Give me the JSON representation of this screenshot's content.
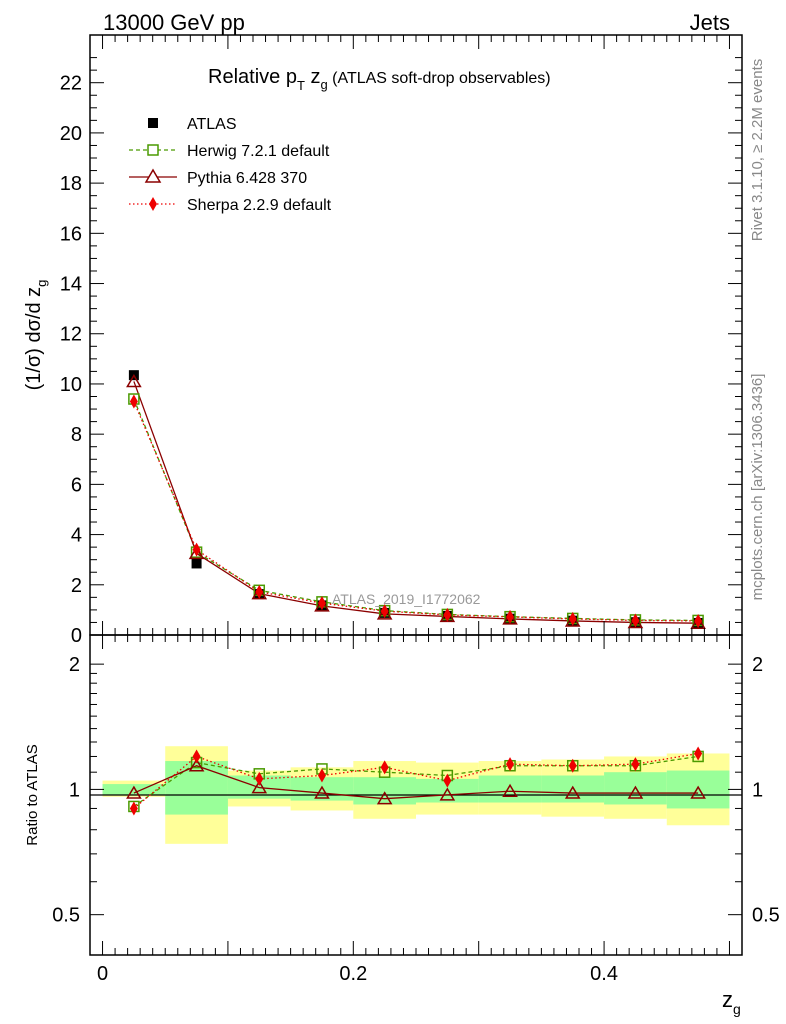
{
  "header": {
    "left": "13000 GeV pp",
    "right": "Jets"
  },
  "title": {
    "main": "Relative p",
    "sub_t": "T",
    "mid": " z",
    "sub_g": "g",
    "suffix": " (ATLAS soft-drop observables)"
  },
  "side_labels": {
    "rivet": "Rivet 3.1.10, ≥ 2.2M events",
    "mcplots": "mcplots.cern.ch [arXiv:1306.3436]"
  },
  "watermark": "ATLAS_2019_I1772062",
  "axes": {
    "ylabel_main": "(1/σ) dσ/d z",
    "ylabel_main_sub": "g",
    "ylabel_ratio": "Ratio to ATLAS",
    "xlabel": "z",
    "xlabel_sub": "g",
    "main_yticks": [
      "0",
      "2",
      "4",
      "6",
      "8",
      "10",
      "12",
      "14",
      "16",
      "18",
      "20",
      "22"
    ],
    "ratio_yticks": [
      "0.5",
      "1",
      "2"
    ],
    "xticks": [
      "0",
      "0.2",
      "0.4"
    ]
  },
  "legend": [
    {
      "name": "ATLAS",
      "color": "#000000",
      "marker": "filled-square"
    },
    {
      "name": "Herwig 7.2.1 default",
      "color": "#4a9a00",
      "marker": "open-square"
    },
    {
      "name": "Pythia 6.428 370",
      "color": "#8b0000",
      "marker": "open-triangle"
    },
    {
      "name": "Sherpa 2.2.9 default",
      "color": "#ee0000",
      "marker": "filled-diamond"
    }
  ],
  "chart_data": [
    {
      "type": "scatter",
      "panel": "main",
      "xlabel": "z_g",
      "ylabel": "(1/σ) dσ/d z_g",
      "xlim": [
        -0.01,
        0.51
      ],
      "ylim": [
        0,
        23.9
      ],
      "x": [
        0.025,
        0.075,
        0.125,
        0.175,
        0.225,
        0.275,
        0.325,
        0.375,
        0.425,
        0.475
      ],
      "series": [
        {
          "name": "ATLAS",
          "values": [
            10.35,
            2.85,
            1.63,
            1.18,
            0.88,
            0.76,
            0.65,
            0.57,
            0.51,
            0.48
          ]
        },
        {
          "name": "Herwig 7.2.1 default",
          "values": [
            9.4,
            3.3,
            1.78,
            1.32,
            0.97,
            0.82,
            0.73,
            0.66,
            0.6,
            0.58
          ]
        },
        {
          "name": "Pythia 6.428 370",
          "values": [
            10.1,
            3.25,
            1.65,
            1.16,
            0.84,
            0.74,
            0.64,
            0.56,
            0.5,
            0.47
          ]
        },
        {
          "name": "Sherpa 2.2.9 default",
          "values": [
            9.3,
            3.4,
            1.72,
            1.27,
            0.95,
            0.8,
            0.72,
            0.64,
            0.58,
            0.56
          ]
        }
      ]
    },
    {
      "type": "scatter",
      "panel": "ratio",
      "ylabel": "Ratio to ATLAS",
      "ylog": true,
      "xlim": [
        -0.01,
        0.51
      ],
      "ylim": [
        0.4,
        2.35
      ],
      "x": [
        0.025,
        0.075,
        0.125,
        0.175,
        0.225,
        0.275,
        0.325,
        0.375,
        0.425,
        0.475
      ],
      "bands": {
        "stat_green": [
          [
            0.97,
            1.03
          ],
          [
            0.87,
            1.17
          ],
          [
            0.95,
            1.08
          ],
          [
            0.94,
            1.07
          ],
          [
            0.92,
            1.07
          ],
          [
            0.93,
            1.06
          ],
          [
            0.93,
            1.08
          ],
          [
            0.93,
            1.08
          ],
          [
            0.92,
            1.1
          ],
          [
            0.9,
            1.11
          ]
        ],
        "total_yellow": [
          [
            0.96,
            1.05
          ],
          [
            0.74,
            1.27
          ],
          [
            0.91,
            1.11
          ],
          [
            0.89,
            1.13
          ],
          [
            0.85,
            1.17
          ],
          [
            0.87,
            1.16
          ],
          [
            0.87,
            1.17
          ],
          [
            0.86,
            1.18
          ],
          [
            0.85,
            1.2
          ],
          [
            0.82,
            1.22
          ]
        ]
      },
      "series": [
        {
          "name": "Herwig 7.2.1 default",
          "values": [
            0.91,
            1.16,
            1.09,
            1.12,
            1.1,
            1.08,
            1.14,
            1.14,
            1.14,
            1.2
          ]
        },
        {
          "name": "Pythia 6.428 370",
          "values": [
            0.98,
            1.14,
            1.01,
            0.98,
            0.95,
            0.97,
            0.99,
            0.98,
            0.98,
            0.98
          ]
        },
        {
          "name": "Sherpa 2.2.9 default",
          "values": [
            0.9,
            1.2,
            1.06,
            1.08,
            1.13,
            1.05,
            1.15,
            1.14,
            1.15,
            1.22
          ]
        }
      ]
    }
  ]
}
